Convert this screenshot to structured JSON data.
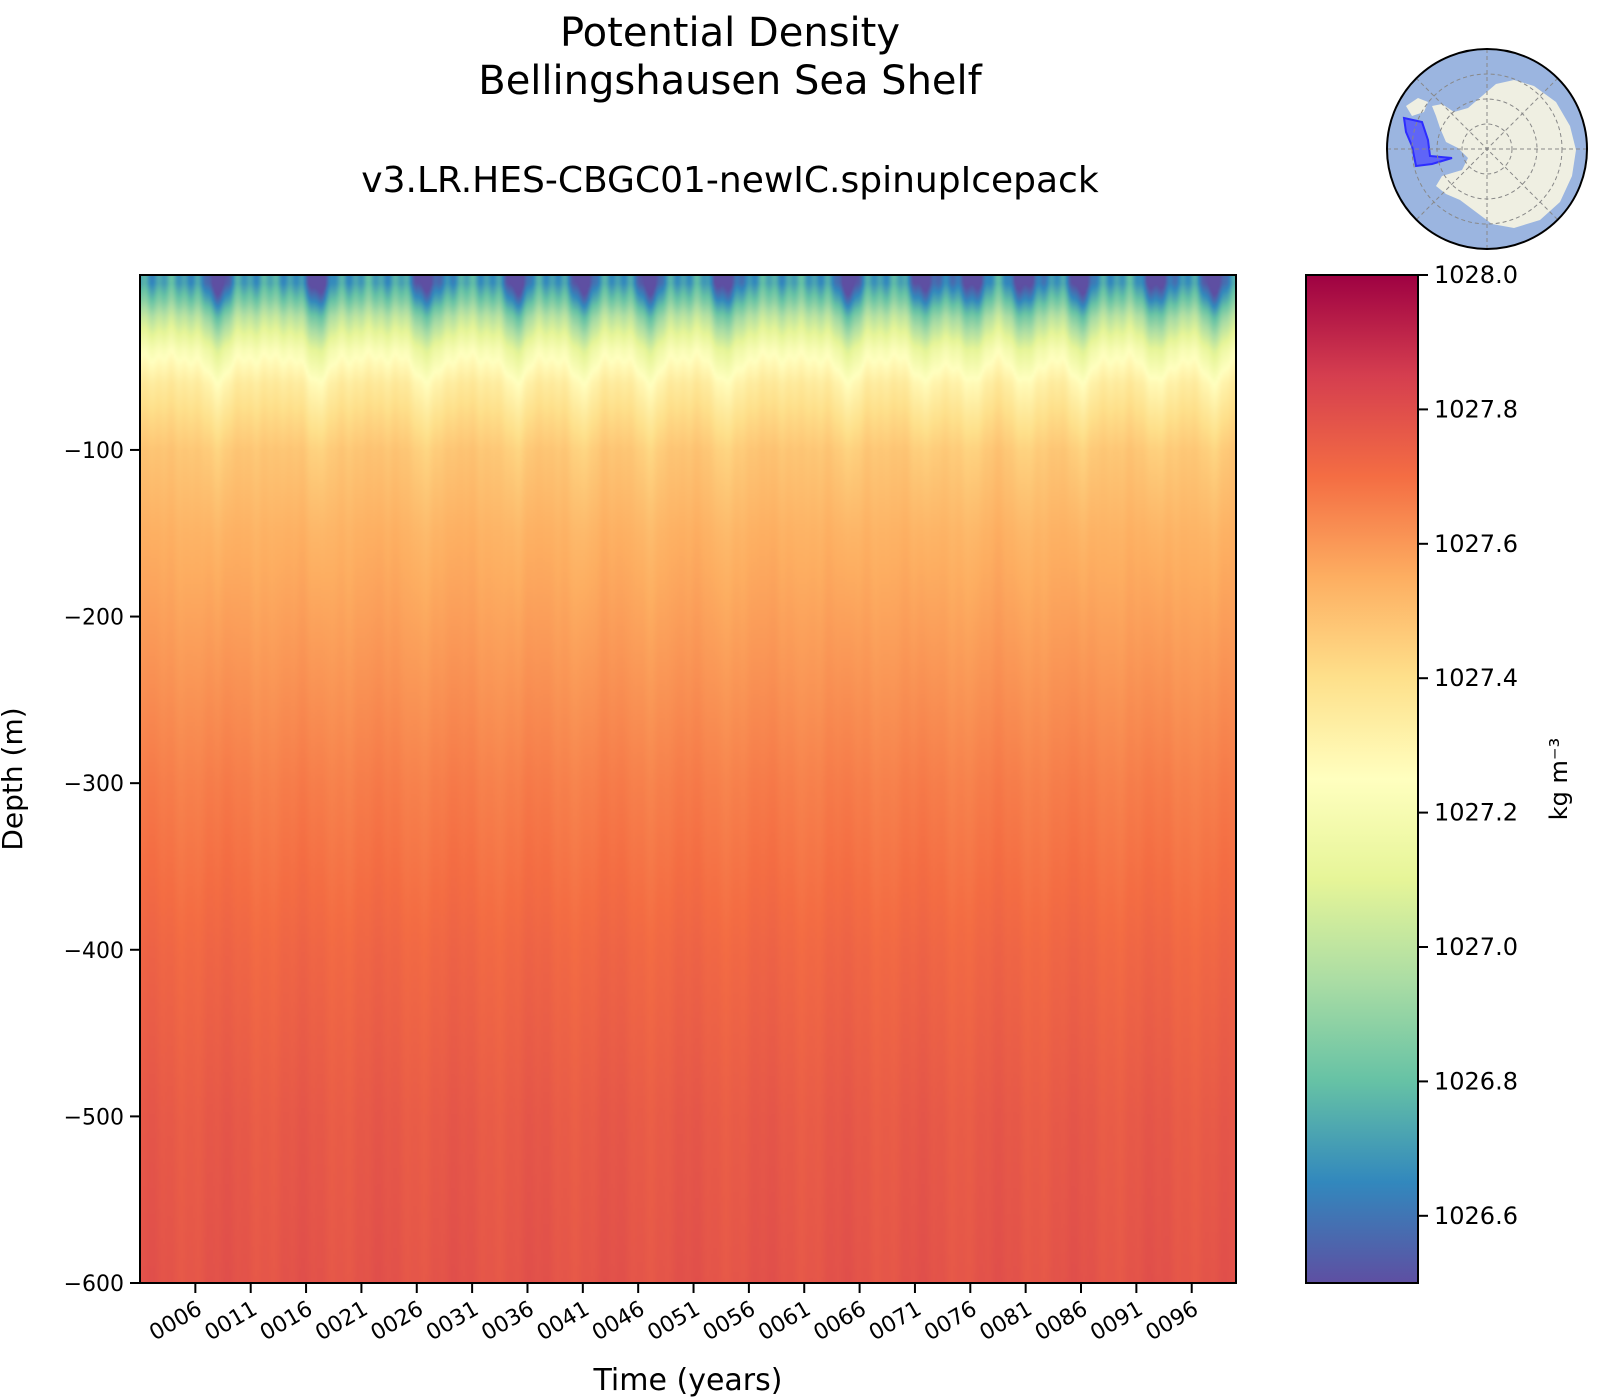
{
  "title_line1": "Potential Density",
  "title_line2": "Bellingshausen Sea Shelf",
  "subtitle": "v3.LR.HES-CBGC01-newIC.spinupIcepack",
  "icons": {
    "inset_map": "antarctica-region-map-icon"
  },
  "colors": {
    "colormap": [
      "#5e4fa2",
      "#3288bd",
      "#66c2a5",
      "#abdda4",
      "#e6f598",
      "#ffffbf",
      "#fee08b",
      "#fdae61",
      "#f46d43",
      "#d53e4f",
      "#9e0142"
    ],
    "ocean": "#9bb5e0",
    "land": "#efefe2",
    "region": "#4b4bff"
  },
  "chart_data": {
    "type": "heatmap",
    "title": "Potential Density\nBellingshausen Sea Shelf",
    "subtitle": "v3.LR.HES-CBGC01-newIC.spinupIcepack",
    "xlabel": "Time (years)",
    "ylabel": "Depth (m)",
    "x_tick_labels": [
      "0006",
      "0011",
      "0016",
      "0021",
      "0026",
      "0031",
      "0036",
      "0041",
      "0046",
      "0051",
      "0056",
      "0061",
      "0066",
      "0071",
      "0076",
      "0081",
      "0086",
      "0091",
      "0096"
    ],
    "x_tick_values": [
      6,
      11,
      16,
      21,
      26,
      31,
      36,
      41,
      46,
      51,
      56,
      61,
      66,
      71,
      76,
      81,
      86,
      91,
      96
    ],
    "xlim": [
      1,
      100
    ],
    "y_tick_values": [
      -100,
      -200,
      -300,
      -400,
      -500,
      -600
    ],
    "y_tick_labels": [
      "−100",
      "−200",
      "−300",
      "−400",
      "−500",
      "−600"
    ],
    "ylim": [
      -600,
      5
    ],
    "colorbar": {
      "label": "kg m⁻³",
      "vmin": 1026.5,
      "vmax": 1028.0,
      "tick_values": [
        1026.6,
        1026.8,
        1027.0,
        1027.2,
        1027.4,
        1027.6,
        1027.8,
        1028.0
      ],
      "tick_labels": [
        "1026.6",
        "1026.8",
        "1027.0",
        "1027.2",
        "1027.4",
        "1027.6",
        "1027.8",
        "1028.0"
      ]
    },
    "depth_profile": {
      "depths": [
        0,
        -10,
        -20,
        -40,
        -60,
        -80,
        -100,
        -150,
        -200,
        -300,
        -400,
        -500,
        -600
      ],
      "density": [
        1026.72,
        1026.85,
        1027.0,
        1027.22,
        1027.35,
        1027.42,
        1027.48,
        1027.54,
        1027.58,
        1027.66,
        1027.72,
        1027.76,
        1027.78
      ]
    },
    "surface_fresh_events_years": [
      8,
      17,
      27,
      35,
      41,
      47,
      54,
      65,
      72,
      76,
      81,
      86,
      93,
      98
    ]
  }
}
